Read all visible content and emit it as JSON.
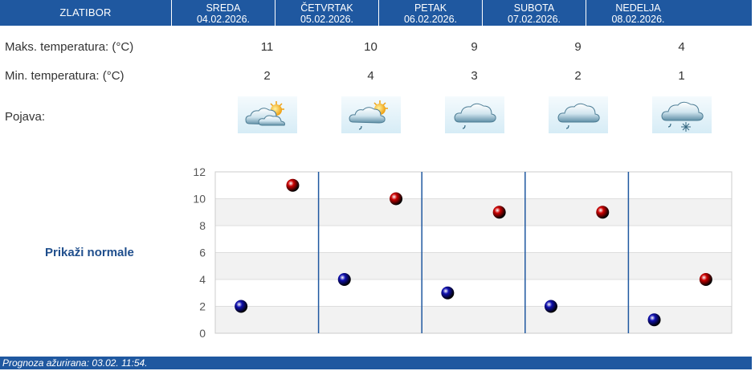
{
  "header": {
    "location": "ZLATIBOR",
    "days": [
      {
        "name": "SREDA",
        "date": "04.02.2026."
      },
      {
        "name": "ČETVRTAK",
        "date": "05.02.2026."
      },
      {
        "name": "PETAK",
        "date": "06.02.2026."
      },
      {
        "name": "SUBOTA",
        "date": "07.02.2026."
      },
      {
        "name": "NEDELJA",
        "date": "08.02.2026."
      }
    ]
  },
  "rows": {
    "max_label": "Maks. temperatura: (°C)",
    "min_label": "Min. temperatura: (°C)",
    "phenomena_label": "Pojava:",
    "max_values": [
      "11",
      "10",
      "9",
      "9",
      "4"
    ],
    "min_values": [
      "2",
      "4",
      "3",
      "2",
      "1"
    ],
    "icons": [
      "sun-behind-cloud-icon",
      "sun-cloud-drizzle-icon",
      "cloud-drizzle-icon",
      "cloud-drizzle-icon",
      "cloud-snow-rain-icon"
    ]
  },
  "show_normals_label": "Prikaži normale",
  "footer": {
    "updated_text": "Prognoza ažurirana:  03.02. 11:54."
  },
  "colors": {
    "header_bg": "#1f58a0",
    "max_dot": "#cc0000",
    "min_dot": "#1010b0",
    "link": "#1f4e8c"
  },
  "chart_data": {
    "type": "scatter",
    "categories": [
      "SREDA",
      "ČETVRTAK",
      "PETAK",
      "SUBOTA",
      "NEDELJA"
    ],
    "series": [
      {
        "values": [
          2,
          4,
          3,
          2,
          1
        ],
        "color": "#1010b0",
        "position": "left"
      },
      {
        "values": [
          11,
          10,
          9,
          9,
          4
        ],
        "color": "#cc0000",
        "position": "right"
      }
    ],
    "ylim": [
      0,
      12
    ],
    "yticks": [
      "0",
      "2",
      "4",
      "6",
      "8",
      "10",
      "12"
    ],
    "grid": true
  }
}
